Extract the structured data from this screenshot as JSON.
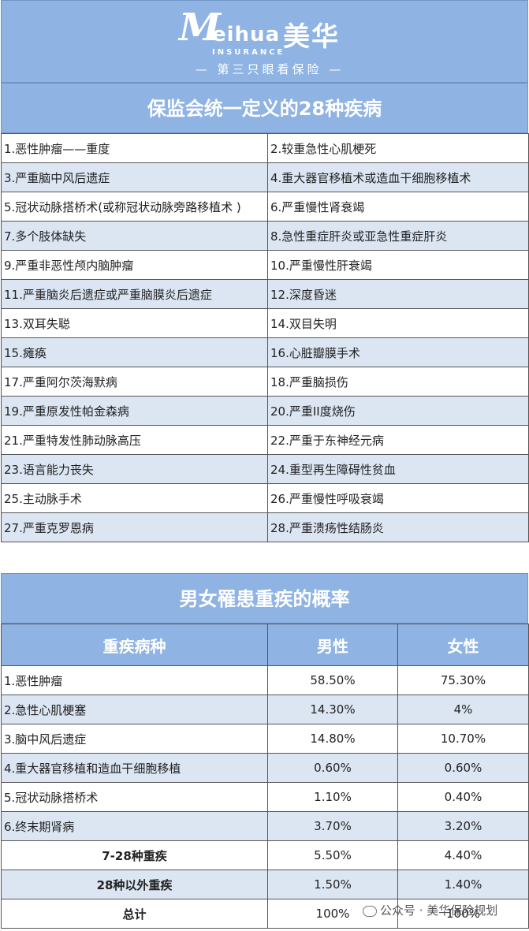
{
  "banner": {
    "logo_m": "M",
    "logo_word": "eihua",
    "logo_sub": "INSURANCE",
    "logo_cn": "美华",
    "slogan": "— 第三只眼看保险 —"
  },
  "section1": {
    "title": "保监会统一定义的28种疾病",
    "rows": [
      [
        "1.恶性肿瘤——重度",
        "2.较重急性心肌梗死"
      ],
      [
        "3.严重脑中风后遗症",
        "4.重大器官移植术或造血干细胞移植术"
      ],
      [
        "5.冠状动脉搭桥术(或称冠状动脉旁路移植术 )",
        "6.严重慢性肾衰竭"
      ],
      [
        "7.多个肢体缺失",
        "8.急性重症肝炎或亚急性重症肝炎"
      ],
      [
        "9.严重非恶性颅内脑肿瘤",
        "10.严重慢性肝衰竭"
      ],
      [
        "11.严重脑炎后遗症或严重脑膜炎后遗症",
        "12.深度昏迷"
      ],
      [
        "13.双耳失聪",
        "14.双目失明"
      ],
      [
        "15.瘫痪",
        "16.心脏瓣膜手术"
      ],
      [
        "17.严重阿尔茨海默病",
        "18.严重脑损伤"
      ],
      [
        "19.严重原发性帕金森病",
        "20.严重II度烧伤"
      ],
      [
        "21.严重特发性肺动脉高压",
        "22.严重于东神经元病"
      ],
      [
        "23.语言能力丧失",
        "24.重型再生障碍性贫血"
      ],
      [
        "25.主动脉手术",
        "26.严重慢性呼吸衰竭"
      ],
      [
        "27.严重克罗恩病",
        "28.严重溃疡性结肠炎"
      ]
    ]
  },
  "section2": {
    "title": "男女罹患重疾的概率",
    "headers": [
      "重疾病种",
      "男性",
      "女性"
    ],
    "rows": [
      {
        "name": "1.恶性肿瘤",
        "male": "58.50%",
        "female": "75.30%"
      },
      {
        "name": "2.急性心肌梗塞",
        "male": "14.30%",
        "female": "4%"
      },
      {
        "name": "3.脑中风后遗症",
        "male": "14.80%",
        "female": "10.70%"
      },
      {
        "name": "4.重大器官移植和造血干细胞移植",
        "male": "0.60%",
        "female": "0.60%"
      },
      {
        "name": "5.冠状动脉搭桥术",
        "male": "1.10%",
        "female": "0.40%"
      },
      {
        "name": "6.终末期肾病",
        "male": "3.70%",
        "female": "3.20%"
      }
    ],
    "summary_rows": [
      {
        "name": "7-28种重疾",
        "male": "5.50%",
        "female": "4.40%"
      },
      {
        "name": "28种以外重疾",
        "male": "1.50%",
        "female": "1.40%"
      },
      {
        "name": "总计",
        "male": "100%",
        "female": "100%"
      }
    ]
  },
  "watermark": {
    "text": "公众号 · 美华保险规划",
    "icon": "wechat-icon"
  }
}
